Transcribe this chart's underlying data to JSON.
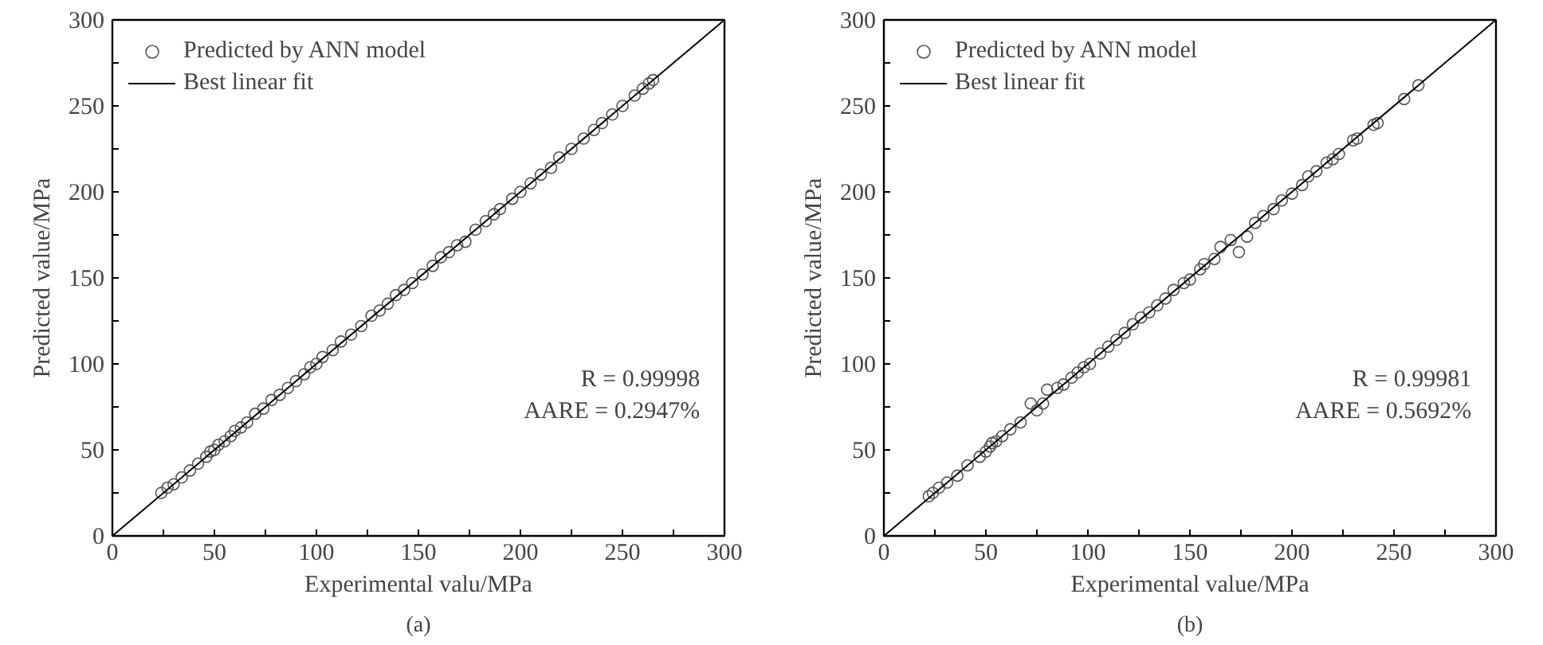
{
  "chart_data": [
    {
      "type": "scatter",
      "title": "(a)",
      "xlabel": "Experimental valu/MPa",
      "ylabel": "Predicted value/MPa",
      "xlim": [
        0,
        300
      ],
      "ylim": [
        0,
        300
      ],
      "xticks": [
        0,
        {
          "value": 25,
          "label": null
        },
        50,
        {
          "value": 75,
          "label": null
        },
        100,
        {
          "value": 125,
          "label": null
        },
        150,
        {
          "value": 175,
          "label": null
        },
        200,
        {
          "value": 225,
          "label": null
        },
        250,
        {
          "value": 275,
          "label": null
        },
        300
      ],
      "yticks": [
        0,
        {
          "value": 25,
          "label": null
        },
        50,
        {
          "value": 75,
          "label": null
        },
        100,
        {
          "value": 125,
          "label": null
        },
        150,
        {
          "value": 175,
          "label": null
        },
        200,
        {
          "value": 225,
          "label": null
        },
        250,
        {
          "value": 275,
          "label": null
        },
        300
      ],
      "grid": false,
      "legend": "top left",
      "series": [
        {
          "name": "Predicted by ANN model",
          "marker": "circle",
          "color": "#555555",
          "x": [
            24,
            27,
            30,
            34,
            38,
            42,
            46,
            48,
            50,
            52,
            55,
            58,
            60,
            63,
            66,
            70,
            74,
            78,
            82,
            86,
            90,
            94,
            97,
            100,
            103,
            108,
            112,
            117,
            122,
            127,
            131,
            135,
            139,
            143,
            147,
            152,
            157,
            161,
            165,
            169,
            173,
            178,
            183,
            187,
            190,
            196,
            200,
            205,
            210,
            215,
            219,
            225,
            231,
            236,
            240,
            245,
            250,
            256,
            260,
            263,
            265
          ],
          "values": [
            25,
            28,
            30,
            34,
            38,
            42,
            46,
            49,
            50,
            53,
            55,
            58,
            61,
            63,
            66,
            71,
            74,
            79,
            82,
            86,
            90,
            94,
            98,
            100,
            104,
            108,
            113,
            117,
            122,
            128,
            131,
            135,
            140,
            143,
            147,
            152,
            157,
            162,
            165,
            169,
            171,
            178,
            183,
            187,
            190,
            196,
            200,
            205,
            210,
            214,
            220,
            225,
            231,
            236,
            240,
            245,
            250,
            256,
            260,
            263,
            265
          ]
        },
        {
          "name": "Best linear fit",
          "type": "line",
          "color": "#000000",
          "x": [
            0,
            300
          ],
          "values": [
            0,
            300
          ]
        }
      ],
      "annotations": [
        "R = 0.99998",
        "AARE = 0.2947%"
      ]
    },
    {
      "type": "scatter",
      "title": "(b)",
      "xlabel": "Experimental value/MPa",
      "ylabel": "Predicted value/MPa",
      "xlim": [
        0,
        300
      ],
      "ylim": [
        0,
        300
      ],
      "xticks": [
        0,
        {
          "value": 25,
          "label": null
        },
        50,
        {
          "value": 75,
          "label": null
        },
        100,
        {
          "value": 125,
          "label": null
        },
        150,
        {
          "value": 175,
          "label": null
        },
        200,
        {
          "value": 225,
          "label": null
        },
        250,
        {
          "value": 275,
          "label": null
        },
        300
      ],
      "yticks": [
        0,
        {
          "value": 25,
          "label": null
        },
        50,
        {
          "value": 75,
          "label": null
        },
        100,
        {
          "value": 125,
          "label": null
        },
        150,
        {
          "value": 175,
          "label": null
        },
        200,
        {
          "value": 225,
          "label": null
        },
        250,
        {
          "value": 275,
          "label": null
        },
        300
      ],
      "grid": false,
      "legend": "top left",
      "series": [
        {
          "name": "Predicted by ANN model",
          "marker": "circle",
          "color": "#555555",
          "x": [
            22,
            24,
            27,
            31,
            36,
            41,
            47,
            50,
            52,
            53,
            55,
            58,
            62,
            67,
            72,
            75,
            78,
            80,
            85,
            88,
            92,
            95,
            98,
            101,
            106,
            110,
            114,
            118,
            122,
            126,
            130,
            134,
            138,
            142,
            147,
            150,
            155,
            157,
            162,
            165,
            170,
            174,
            178,
            182,
            186,
            191,
            195,
            200,
            205,
            208,
            212,
            217,
            220,
            223,
            230,
            232,
            240,
            242,
            255,
            262
          ],
          "values": [
            23,
            25,
            28,
            31,
            35,
            41,
            46,
            49,
            52,
            54,
            55,
            58,
            62,
            66,
            77,
            73,
            77,
            85,
            86,
            88,
            92,
            95,
            98,
            100,
            106,
            110,
            114,
            118,
            123,
            127,
            130,
            134,
            138,
            143,
            147,
            149,
            155,
            158,
            161,
            168,
            172,
            165,
            174,
            182,
            186,
            190,
            195,
            199,
            204,
            209,
            212,
            217,
            219,
            222,
            230,
            231,
            239,
            240,
            254,
            262
          ]
        },
        {
          "name": "Best linear fit",
          "type": "line",
          "color": "#000000",
          "x": [
            0,
            300
          ],
          "values": [
            0,
            300
          ]
        }
      ],
      "annotations": [
        "R = 0.99981",
        "AARE = 0.5692%"
      ]
    }
  ]
}
